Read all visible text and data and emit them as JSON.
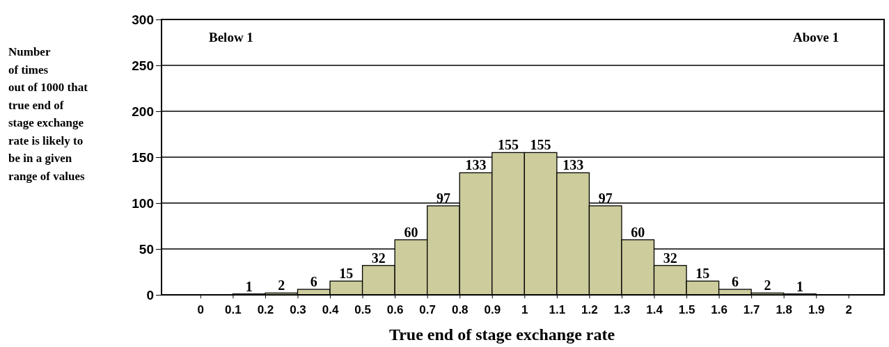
{
  "chart_data": {
    "type": "histogram",
    "bins": [
      0,
      0.1,
      0.2,
      0.3,
      0.4,
      0.5,
      0.6,
      0.7,
      0.8,
      0.9,
      1,
      1.1,
      1.2,
      1.3,
      1.4,
      1.5,
      1.6,
      1.7,
      1.8,
      1.9,
      2
    ],
    "values": [
      0,
      1,
      2,
      6,
      15,
      32,
      60,
      97,
      133,
      155,
      155,
      133,
      97,
      60,
      32,
      15,
      6,
      2,
      1,
      0
    ],
    "value_labels": [
      null,
      "1",
      "2",
      "6",
      "15",
      "32",
      "60",
      "97",
      "133",
      "155",
      "155",
      "133",
      "97",
      "60",
      "32",
      "15",
      "6",
      "2",
      "1",
      null
    ],
    "color": "#cccc9c",
    "xlabel": "True end of stage exchange rate",
    "ylabel": "Number\nof times\nout of 1000 that\ntrue end of\nstage exchange\nrate is likely to\nbe in a given\nrange of values",
    "xlim": [
      -0.12,
      2.11
    ],
    "xticks": [
      0,
      0.1,
      0.2,
      0.3,
      0.4,
      0.5,
      0.6,
      0.7,
      0.8,
      0.9,
      1,
      1.1,
      1.2,
      1.3,
      1.4,
      1.5,
      1.6,
      1.7,
      1.8,
      1.9,
      2
    ],
    "ylim": [
      0,
      300
    ],
    "yticks": [
      0,
      50,
      100,
      150,
      200,
      250,
      300
    ],
    "grid": "y",
    "annotations": [
      "Below 1",
      "Above 1"
    ]
  }
}
